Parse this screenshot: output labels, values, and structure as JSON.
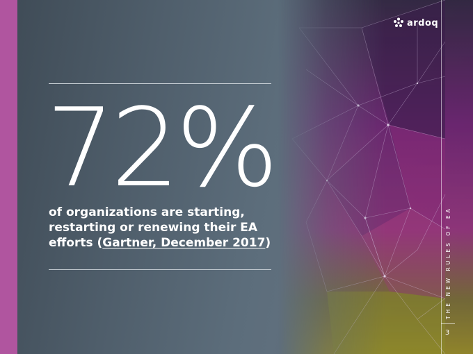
{
  "brand": {
    "name": "ardoq"
  },
  "stat": {
    "value": "72%",
    "caption_before": "of organizations are starting, restarting or renewing their EA efforts (",
    "caption_link": "Gartner, December 2017",
    "caption_after": ")"
  },
  "sidebar": {
    "section_title": "THE NEW RULES OF EA",
    "page_number": "3"
  },
  "colors": {
    "accent_bar": "#b0559f",
    "background": "#55636f",
    "text": "#ffffff"
  }
}
